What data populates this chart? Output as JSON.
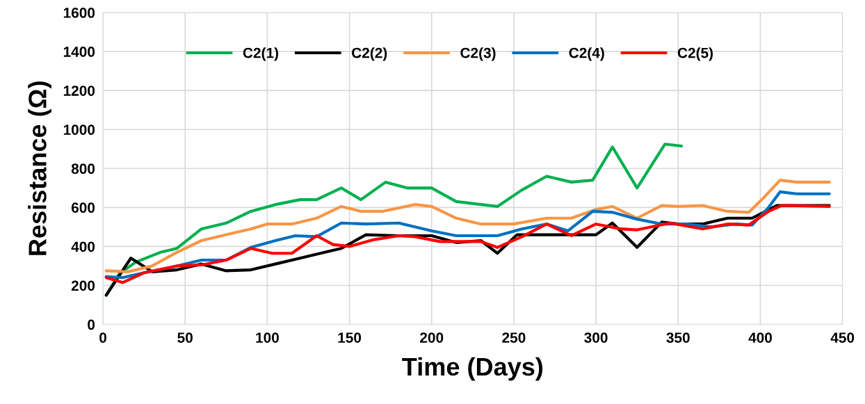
{
  "chart_data": {
    "type": "line",
    "xlabel": "Time (Days)",
    "ylabel": "Resistance (Ω)",
    "xlim": [
      0,
      450
    ],
    "xticks": [
      0,
      50,
      100,
      150,
      200,
      250,
      300,
      350,
      400,
      450
    ],
    "ylim": [
      0,
      1600
    ],
    "yticks": [
      0,
      200,
      400,
      600,
      800,
      1000,
      1200,
      1400,
      1600
    ],
    "grid": true,
    "legend": "top",
    "marker": "none",
    "line_style": "solid",
    "series": [
      {
        "name": "C2(1)",
        "color": "#00b050",
        "x": [
          2,
          10,
          20,
          35,
          45,
          60,
          75,
          90,
          105,
          120,
          130,
          145,
          157,
          172,
          185,
          200,
          215,
          240,
          255,
          270,
          285,
          298,
          310,
          325,
          342,
          352
        ],
        "values": [
          150,
          260,
          320,
          370,
          390,
          490,
          520,
          580,
          615,
          640,
          640,
          700,
          640,
          730,
          700,
          700,
          630,
          605,
          690,
          760,
          730,
          740,
          910,
          700,
          925,
          915
        ]
      },
      {
        "name": "C2(2)",
        "color": "#000000",
        "x": [
          2,
          17,
          30,
          45,
          60,
          75,
          90,
          105,
          120,
          135,
          145,
          160,
          180,
          200,
          215,
          230,
          240,
          252,
          270,
          285,
          300,
          310,
          325,
          340,
          350,
          365,
          380,
          395,
          410,
          442
        ],
        "values": [
          150,
          340,
          270,
          280,
          310,
          275,
          280,
          310,
          340,
          370,
          390,
          460,
          455,
          455,
          420,
          430,
          365,
          460,
          460,
          460,
          460,
          520,
          395,
          525,
          515,
          515,
          545,
          545,
          610,
          610
        ]
      },
      {
        "name": "C2(3)",
        "color": "#f79646",
        "x": [
          2,
          15,
          30,
          45,
          60,
          75,
          90,
          100,
          115,
          130,
          145,
          157,
          170,
          190,
          200,
          215,
          230,
          250,
          270,
          285,
          300,
          310,
          325,
          340,
          350,
          365,
          380,
          393,
          402,
          412,
          422,
          442
        ],
        "values": [
          275,
          270,
          300,
          370,
          430,
          460,
          490,
          515,
          515,
          545,
          605,
          580,
          580,
          615,
          605,
          545,
          515,
          515,
          545,
          545,
          590,
          605,
          545,
          610,
          605,
          610,
          580,
          575,
          650,
          740,
          730,
          730
        ]
      },
      {
        "name": "C2(4)",
        "color": "#0070c0",
        "x": [
          2,
          12,
          25,
          40,
          60,
          75,
          90,
          105,
          117,
          130,
          145,
          160,
          180,
          200,
          215,
          240,
          255,
          270,
          283,
          298,
          310,
          325,
          340,
          355,
          370,
          385,
          395,
          405,
          412,
          422,
          442
        ],
        "values": [
          245,
          240,
          265,
          290,
          330,
          330,
          395,
          430,
          455,
          450,
          520,
          515,
          520,
          480,
          455,
          455,
          490,
          515,
          480,
          580,
          575,
          540,
          515,
          515,
          500,
          515,
          510,
          600,
          680,
          670,
          670
        ]
      },
      {
        "name": "C2(5)",
        "color": "#ff0000",
        "x": [
          2,
          12,
          25,
          45,
          60,
          75,
          90,
          103,
          115,
          130,
          140,
          150,
          165,
          180,
          190,
          205,
          230,
          240,
          255,
          270,
          285,
          300,
          315,
          325,
          345,
          365,
          380,
          393,
          405,
          413,
          442
        ],
        "values": [
          240,
          215,
          265,
          300,
          305,
          330,
          390,
          365,
          365,
          455,
          410,
          400,
          435,
          455,
          450,
          425,
          425,
          395,
          450,
          515,
          455,
          515,
          490,
          485,
          520,
          490,
          515,
          510,
          580,
          610,
          605
        ]
      }
    ]
  }
}
